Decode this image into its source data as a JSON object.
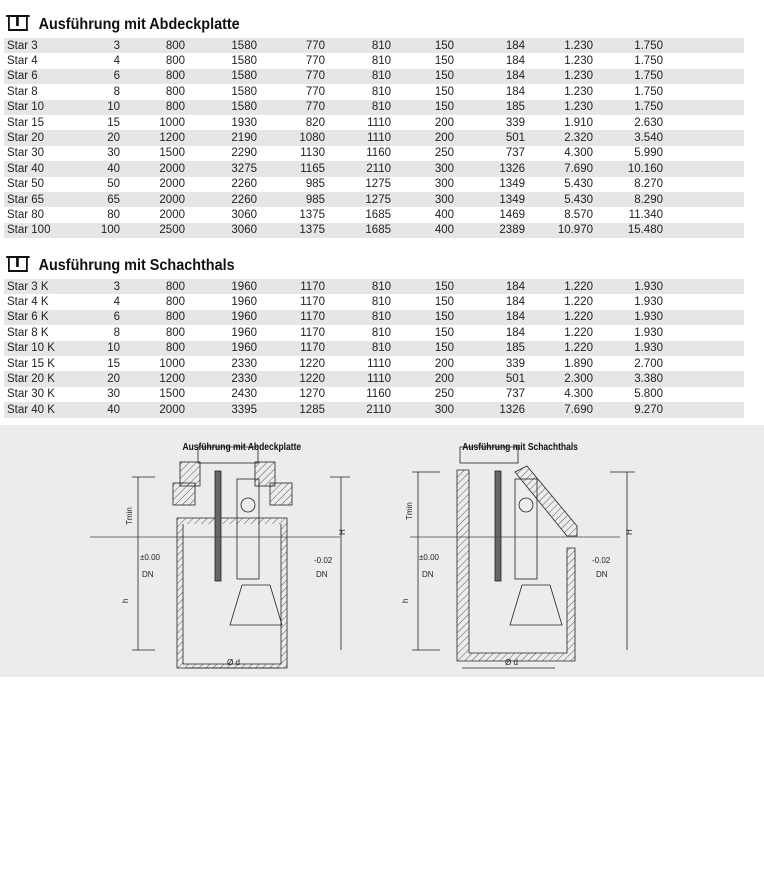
{
  "section1": {
    "icon": "info-box-icon",
    "title": "Ausführung mit Abdeckplatte",
    "rows": [
      [
        "Star 3",
        "3",
        "800",
        "1580",
        "770",
        "810",
        "150",
        "184",
        "1.230",
        "1.750"
      ],
      [
        "Star 4",
        "4",
        "800",
        "1580",
        "770",
        "810",
        "150",
        "184",
        "1.230",
        "1.750"
      ],
      [
        "Star 6",
        "6",
        "800",
        "1580",
        "770",
        "810",
        "150",
        "184",
        "1.230",
        "1.750"
      ],
      [
        "Star 8",
        "8",
        "800",
        "1580",
        "770",
        "810",
        "150",
        "184",
        "1.230",
        "1.750"
      ],
      [
        "Star 10",
        "10",
        "800",
        "1580",
        "770",
        "810",
        "150",
        "185",
        "1.230",
        "1.750"
      ],
      [
        "Star 15",
        "15",
        "1000",
        "1930",
        "820",
        "1110",
        "200",
        "339",
        "1.910",
        "2.630"
      ],
      [
        "Star 20",
        "20",
        "1200",
        "2190",
        "1080",
        "1110",
        "200",
        "501",
        "2.320",
        "3.540"
      ],
      [
        "Star 30",
        "30",
        "1500",
        "2290",
        "1130",
        "1160",
        "250",
        "737",
        "4.300",
        "5.990"
      ],
      [
        "Star 40",
        "40",
        "2000",
        "3275",
        "1165",
        "2110",
        "300",
        "1326",
        "7.690",
        "10.160"
      ],
      [
        "Star 50",
        "50",
        "2000",
        "2260",
        "985",
        "1275",
        "300",
        "1349",
        "5.430",
        "8.270"
      ],
      [
        "Star 65",
        "65",
        "2000",
        "2260",
        "985",
        "1275",
        "300",
        "1349",
        "5.430",
        "8.290"
      ],
      [
        "Star 80",
        "80",
        "2000",
        "3060",
        "1375",
        "1685",
        "400",
        "1469",
        "8.570",
        "11.340"
      ],
      [
        "Star 100",
        "100",
        "2500",
        "3060",
        "1375",
        "1685",
        "400",
        "2389",
        "10.970",
        "15.480"
      ]
    ]
  },
  "section2": {
    "icon": "info-box-icon",
    "title": "Ausführung mit Schachthals",
    "rows": [
      [
        "Star 3 K",
        "3",
        "800",
        "1960",
        "1170",
        "810",
        "150",
        "184",
        "1.220",
        "1.930"
      ],
      [
        "Star 4 K",
        "4",
        "800",
        "1960",
        "1170",
        "810",
        "150",
        "184",
        "1.220",
        "1.930"
      ],
      [
        "Star 6 K",
        "6",
        "800",
        "1960",
        "1170",
        "810",
        "150",
        "184",
        "1.220",
        "1.930"
      ],
      [
        "Star 8 K",
        "8",
        "800",
        "1960",
        "1170",
        "810",
        "150",
        "184",
        "1.220",
        "1.930"
      ],
      [
        "Star 10 K",
        "10",
        "800",
        "1960",
        "1170",
        "810",
        "150",
        "185",
        "1.220",
        "1.930"
      ],
      [
        "Star 15 K",
        "15",
        "1000",
        "2330",
        "1220",
        "1110",
        "200",
        "339",
        "1.890",
        "2.700"
      ],
      [
        "Star 20 K",
        "20",
        "1200",
        "2330",
        "1220",
        "1110",
        "200",
        "501",
        "2.300",
        "3.380"
      ],
      [
        "Star 30 K",
        "30",
        "1500",
        "2430",
        "1270",
        "1160",
        "250",
        "737",
        "4.300",
        "5.800"
      ],
      [
        "Star 40 K",
        "40",
        "2000",
        "3395",
        "1285",
        "2110",
        "300",
        "1326",
        "7.690",
        "9.270"
      ]
    ]
  },
  "drawings": [
    {
      "title": "Ausführung mit Abdeckplatte",
      "tmin": "Tmin",
      "h_total": "H",
      "h": "h",
      "inlet_level": "±0.00",
      "outlet_level": "-0.02",
      "dn": "DN",
      "diameter": "Ø d"
    },
    {
      "title": "Ausführung mit Schachthals",
      "tmin": "Tmin",
      "h_total": "H",
      "h": "h",
      "inlet_level": "±0.00",
      "outlet_level": "-0.02",
      "dn": "DN",
      "diameter": "Ø d"
    }
  ]
}
